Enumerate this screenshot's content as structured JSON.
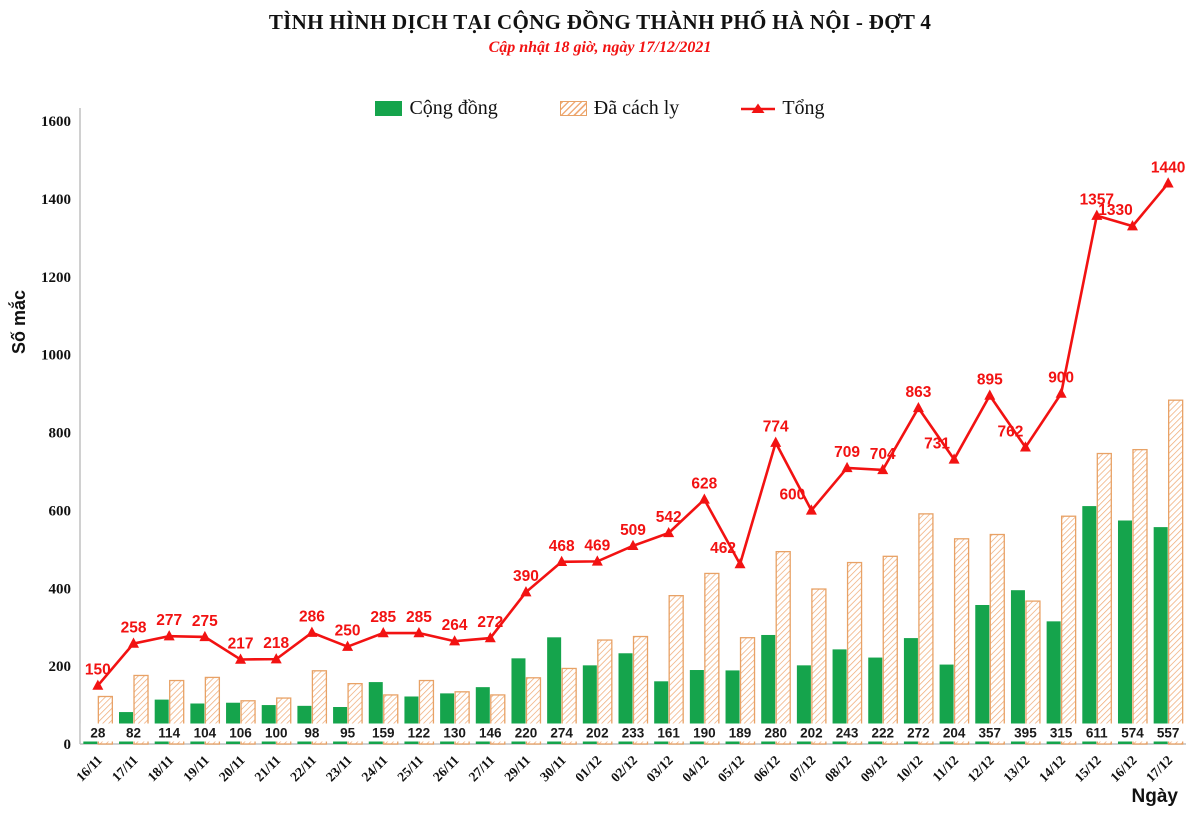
{
  "header": {
    "title": "TÌNH HÌNH DỊCH TẠI CỘNG ĐỒNG THÀNH PHỐ HÀ NỘI - ĐỢT 4",
    "subtitle": "Cập nhật 18 giờ, ngày 17/12/2021"
  },
  "colors": {
    "community_green": "#15a44c",
    "quarantine_orange_border": "#e8a266",
    "quarantine_orange_hatch": "#f0ac79",
    "total_red": "#f21212",
    "axis_gray": "#c0c0c0",
    "label_black": "#1a1a1a",
    "background": "#ffffff"
  },
  "chart_data": {
    "type": "bar",
    "title": "TÌNH HÌNH DỊCH TẠI CỘNG ĐỒNG THÀNH PHỐ HÀ NỘI - ĐỢT 4",
    "subtitle": "Cập nhật 18 giờ, ngày 17/12/2021",
    "xlabel": "Ngày",
    "ylabel": "Số mắc",
    "ylim": [
      0,
      1600
    ],
    "y_ticks": [
      0,
      200,
      400,
      600,
      800,
      1000,
      1200,
      1400,
      1600
    ],
    "grid": false,
    "legend_position": "top-center",
    "categories": [
      "16/11",
      "17/11",
      "18/11",
      "19/11",
      "20/11",
      "21/11",
      "22/11",
      "23/11",
      "24/11",
      "25/11",
      "26/11",
      "27/11",
      "29/11",
      "30/11",
      "01/12",
      "02/12",
      "03/12",
      "04/12",
      "05/12",
      "06/12",
      "07/12",
      "08/12",
      "09/12",
      "10/12",
      "11/12",
      "12/12",
      "13/12",
      "14/12",
      "15/12",
      "16/12",
      "17/12"
    ],
    "series": [
      {
        "name": "Cộng đồng",
        "kind": "bar",
        "style": "solid-green",
        "labels_shown": "at-base-on-white-box",
        "values": [
          28,
          82,
          114,
          104,
          106,
          100,
          98,
          95,
          159,
          122,
          130,
          146,
          220,
          274,
          202,
          233,
          161,
          190,
          189,
          280,
          202,
          243,
          222,
          272,
          204,
          357,
          395,
          315,
          611,
          574,
          557
        ]
      },
      {
        "name": "Đã cách ly",
        "kind": "bar",
        "style": "diagonal-hatched-orange",
        "labels_shown": "none",
        "values": [
          122,
          176,
          163,
          171,
          111,
          118,
          188,
          155,
          126,
          163,
          134,
          126,
          170,
          194,
          267,
          276,
          381,
          438,
          273,
          494,
          398,
          466,
          482,
          591,
          527,
          538,
          367,
          585,
          746,
          756,
          883
        ]
      },
      {
        "name": "Tổng",
        "kind": "line",
        "style": "red-line-triangle-markers",
        "labels_shown": "above-points",
        "values": [
          150,
          258,
          277,
          275,
          217,
          218,
          286,
          250,
          285,
          285,
          264,
          272,
          390,
          468,
          469,
          509,
          542,
          628,
          462,
          774,
          600,
          709,
          704,
          863,
          731,
          895,
          762,
          900,
          1357,
          1330,
          1440
        ]
      }
    ]
  }
}
